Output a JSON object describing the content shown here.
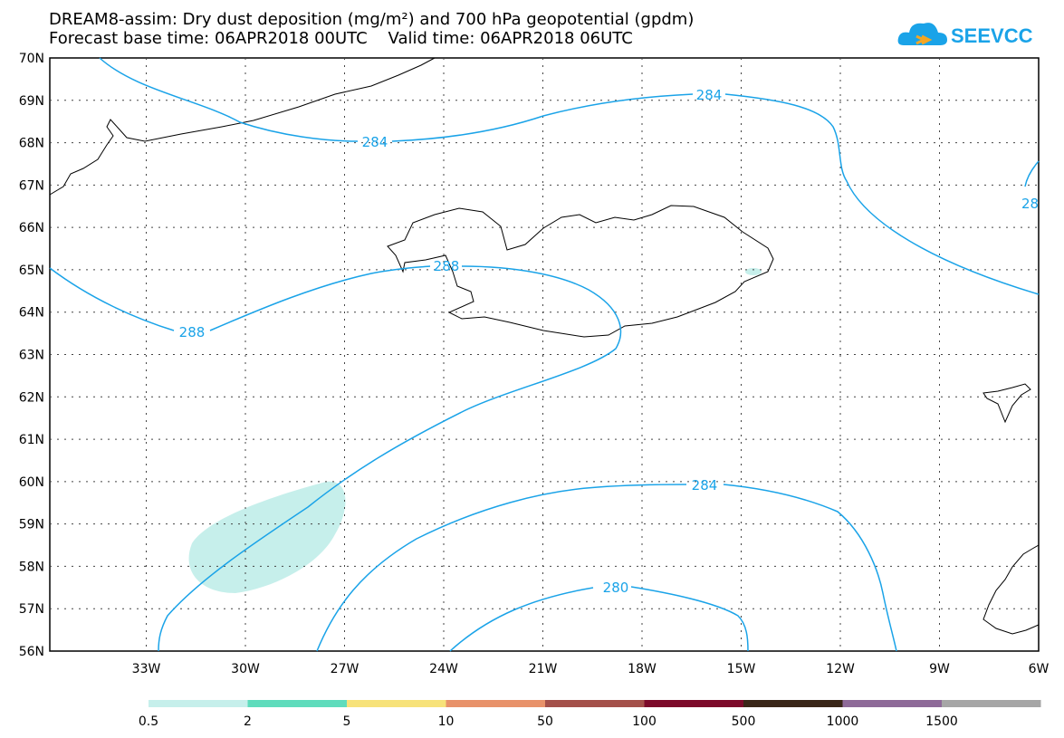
{
  "header": {
    "title_line1": "DREAM8-assim: Dry dust deposition (mg/m²) and 700 hPa geopotential (gpdm)",
    "title_line2": "Forecast base time: 06APR2018 00UTC    Valid time: 06APR2018 06UTC"
  },
  "logo": {
    "text": "SEEVCCC",
    "color": "#1aa3e8",
    "icon": "cloud-icon"
  },
  "map": {
    "lat_labels": [
      "70N",
      "69N",
      "68N",
      "67N",
      "66N",
      "65N",
      "64N",
      "63N",
      "62N",
      "61N",
      "60N",
      "59N",
      "58N",
      "57N",
      "56N"
    ],
    "lon_labels": [
      "33W",
      "30W",
      "27W",
      "24W",
      "21W",
      "18W",
      "15W",
      "12W",
      "9W",
      "6W"
    ],
    "contour_labels": [
      "284",
      "284",
      "284",
      "288",
      "288",
      "284",
      "280",
      "28"
    ],
    "contour_color": "#1aa3e8",
    "dust_fill_color": "#c6efeb"
  },
  "legend": {
    "colors": [
      "#c6efeb",
      "#5fdcbc",
      "#f7e27a",
      "#e8926a",
      "#a4504a",
      "#7c0a2a",
      "#3a2618",
      "#8e6a98",
      "#a6a6a6"
    ],
    "labels": [
      "0.5",
      "2",
      "5",
      "10",
      "50",
      "100",
      "500",
      "1000",
      "1500"
    ]
  }
}
